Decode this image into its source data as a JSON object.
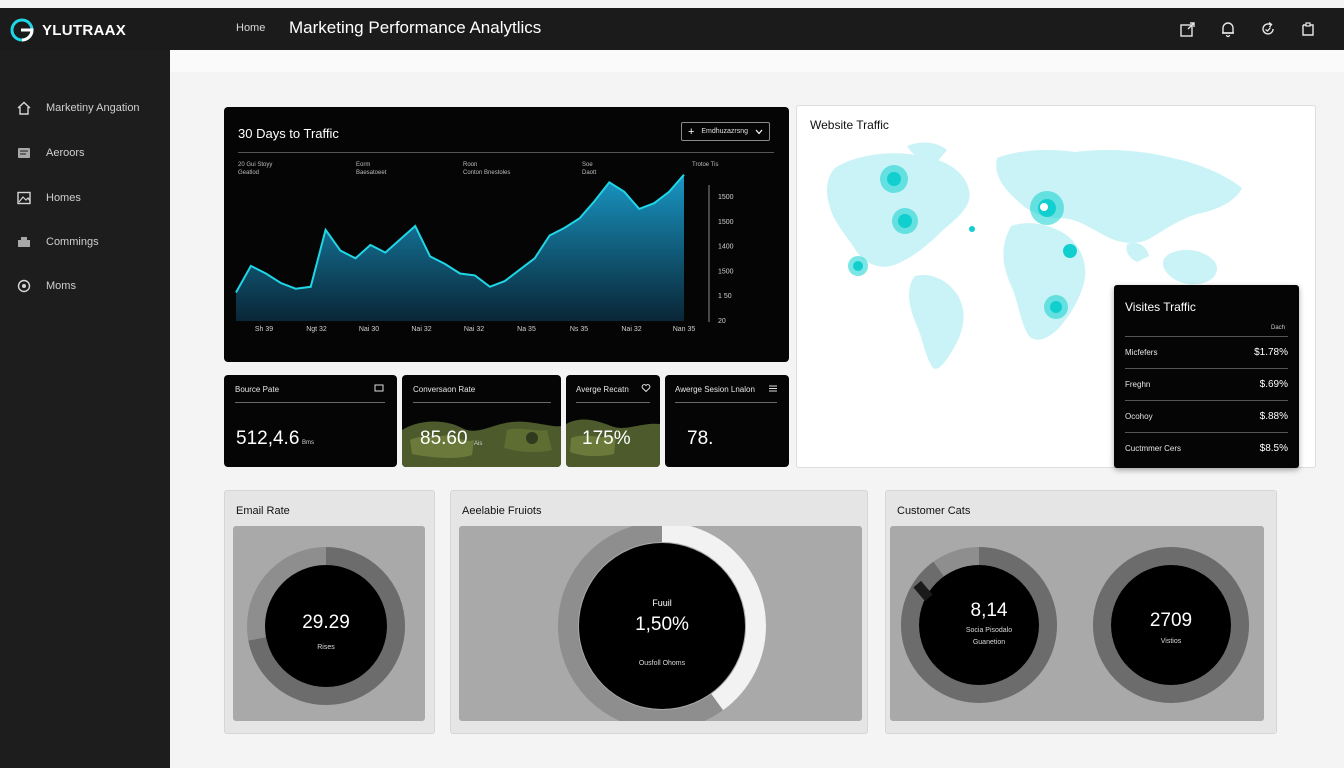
{
  "brand": {
    "name": "YLUTRAAX"
  },
  "header": {
    "breadcrumb": "Home",
    "title": "Marketing Performance Analytlics",
    "icons": [
      "export-icon",
      "bell-icon",
      "refresh-icon",
      "share-icon"
    ]
  },
  "sidebar": {
    "items": [
      {
        "label": "Marketiny Angation",
        "icon": "home-icon"
      },
      {
        "label": "Aeroors",
        "icon": "reports-icon"
      },
      {
        "label": "Homes",
        "icon": "image-icon"
      },
      {
        "label": "Commings",
        "icon": "inbox-icon"
      },
      {
        "label": "Moms",
        "icon": "target-icon"
      }
    ]
  },
  "traffic": {
    "title": "30 Days to Traffic",
    "dropdown_label": "Emdhuzazrsng",
    "stat_headers": [
      {
        "top": "20 Gui Stoyy",
        "bottom": "Geatlod"
      },
      {
        "top": "Eorm",
        "bottom": "Baesatoeet"
      },
      {
        "top": "Roon",
        "bottom": "Conton Bnestoles"
      },
      {
        "top": "Soe",
        "bottom": "Daott"
      },
      {
        "top": "Trotoe Tis",
        "bottom": ""
      }
    ]
  },
  "chart_data": {
    "type": "area",
    "title": "30 Days to Traffic",
    "x_tick_labels": [
      "Sh 39",
      "Ngt 32",
      "Nai 30",
      "Nai 32",
      "Nai 32",
      "Na 35",
      "Ns 35",
      "Nai 32",
      "Nan 35"
    ],
    "y_tick_labels": [
      "1500",
      "1500",
      "1400",
      "1500",
      "1 50",
      "20"
    ],
    "y_axis_side": "right",
    "grid": false,
    "series": [
      {
        "values": [
          1.5,
          2.9,
          2.5,
          2.0,
          1.7,
          1.8,
          4.8,
          3.7,
          3.3,
          4.0,
          3.6,
          4.3,
          5.0,
          3.4,
          3.0,
          2.5,
          2.4,
          1.8,
          2.1,
          2.7,
          3.3,
          4.5,
          4.9,
          5.4,
          6.3,
          7.3,
          6.8,
          5.9,
          6.2,
          6.8,
          7.7
        ]
      }
    ]
  },
  "kpis": [
    {
      "label": "Bource Pate",
      "value": "512,4.6",
      "unit": "Bms"
    },
    {
      "label": "Conversaon Rate",
      "value": "85.60",
      "unit": "Ais"
    },
    {
      "label": "Averge Recatn",
      "value": "175%",
      "unit": ""
    },
    {
      "label": "Awerge Sesion Lnalon",
      "value": "78.",
      "unit": ""
    }
  ],
  "website_traffic": {
    "title": "Website Traffic",
    "hotspots": [
      "north-america-west",
      "north-america-east",
      "south-america",
      "europe",
      "middle-east",
      "africa-east"
    ]
  },
  "visits_popup": {
    "title": "Visites Traffic",
    "column_header": "Dach",
    "rows": [
      {
        "label": "Micfefers",
        "value": "$1.78%"
      },
      {
        "label": "Freghn",
        "value": "$.69%"
      },
      {
        "label": "Ocohoy",
        "value": "$.88%"
      },
      {
        "label": "Cuctmmer Cers",
        "value": "$8.5%"
      }
    ]
  },
  "email_rate": {
    "title": "Email Rate",
    "value": "29.29",
    "sub": "Rises",
    "fraction": 0.72
  },
  "available_prices": {
    "title": "Aeelabie Fruiots",
    "top": "Fuuil",
    "value": "1,50%",
    "sub": "Ousfoll Ohoms",
    "fraction": 0.4
  },
  "customer_cats": {
    "title": "Customer Cats",
    "left": {
      "value": "8,14",
      "sub1": "Socia Pisodalo",
      "sub2": "Guanetion",
      "fraction": 0.9
    },
    "right": {
      "value": "2709",
      "sub": "Vistios",
      "fraction": 1.0
    }
  },
  "colors": {
    "accent": "#1fd6e6",
    "map_land": "#c9f3f6",
    "hotspot": "#11cfcf",
    "panel_dark": "#050505",
    "sidebar": "#1d1d1d"
  }
}
